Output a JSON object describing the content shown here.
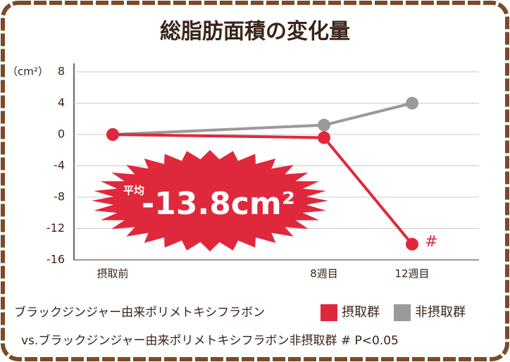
{
  "chart_data": {
    "type": "line",
    "title": "総脂肪面積の変化量",
    "y_label": "（cm²）",
    "categories": [
      "摂取前",
      "8週目",
      "12週目"
    ],
    "series": [
      {
        "name": "摂取群",
        "color": "#e0283c",
        "values": [
          0,
          -0.4,
          -14
        ]
      },
      {
        "name": "非摂取群",
        "color": "#9a9a9a",
        "values": [
          0,
          1.2,
          4
        ]
      }
    ],
    "ylim": [
      -16,
      8
    ],
    "yticks": [
      -16,
      -12,
      -8,
      -4,
      0,
      4,
      8
    ],
    "grid": true,
    "annotation_prefix": "平均",
    "annotation": "-13.8cm²",
    "significance_mark": "#",
    "caption": "ブラックジンジャー由来ポリメトキシフラボン",
    "footnote": "vs.ブラックジンジャー由来ポリメトキシフラボン非摂取群 # P<0.05"
  }
}
